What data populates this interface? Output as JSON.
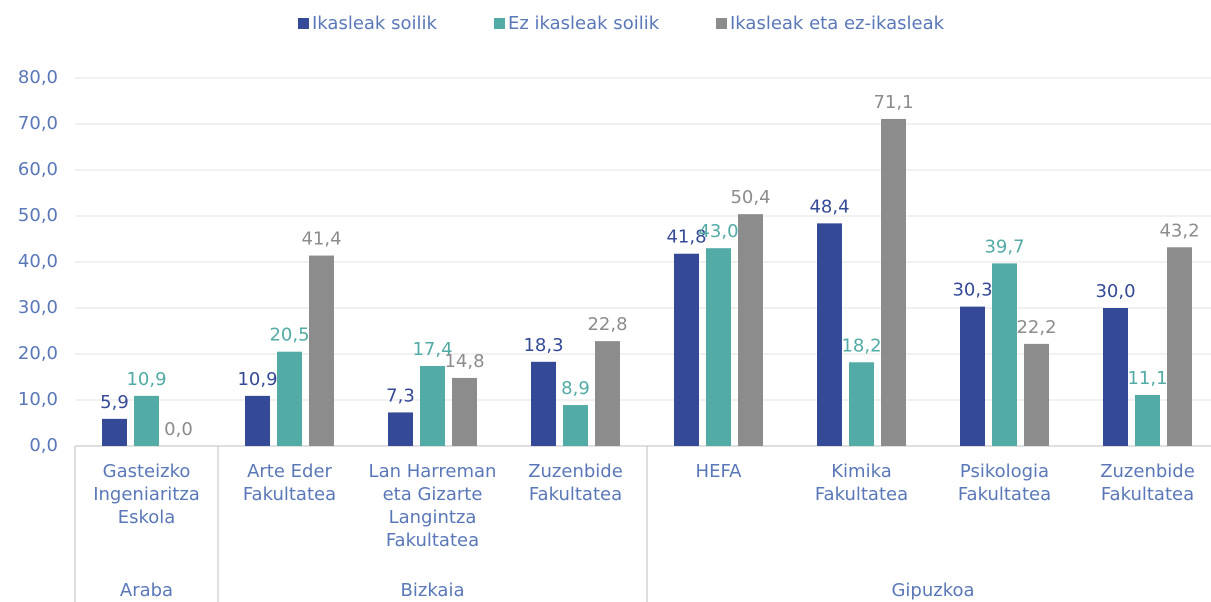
{
  "chart_data": {
    "type": "bar",
    "groups": [
      {
        "name": "Araba",
        "categories": [
          "Gasteizko Ingeniaritza Eskola"
        ]
      },
      {
        "name": "Bizkaia",
        "categories": [
          "Arte Eder Fakultatea",
          "Lan Harreman eta Gizarte Langintza Fakultatea",
          "Zuzenbide Fakultatea"
        ]
      },
      {
        "name": "Gipuzkoa",
        "categories": [
          "HEFA",
          "Kimika Fakultatea",
          "Psikologia Fakultatea",
          "Zuzenbide Fakultatea"
        ]
      }
    ],
    "series": [
      {
        "name": "Ikasleak soilik",
        "color": "#354a96",
        "values": [
          5.9,
          10.9,
          7.3,
          18.3,
          41.8,
          48.4,
          30.3,
          30.0
        ],
        "value_labels": [
          "5,9",
          "10,9",
          "7,3",
          "18,3",
          "41,8",
          "48,4",
          "30,3",
          "30,0"
        ]
      },
      {
        "name": "Ez ikasleak soilik",
        "color": "#52aba5",
        "values": [
          10.9,
          20.5,
          17.4,
          8.9,
          43.0,
          18.2,
          39.7,
          11.1
        ],
        "value_labels": [
          "10,9",
          "20,5",
          "17,4",
          "8,9",
          "43,0",
          "18,2",
          "39,7",
          "11,1"
        ]
      },
      {
        "name": "Ikasleak eta ez-ikasleak",
        "color": "#8c8c8c",
        "values": [
          0.0,
          41.4,
          14.8,
          22.8,
          50.4,
          71.1,
          22.2,
          43.2
        ],
        "value_labels": [
          "0,0",
          "41,4",
          "14,8",
          "22,8",
          "50,4",
          "71,1",
          "22,2",
          "43,2"
        ]
      }
    ],
    "ylim": [
      0,
      80
    ],
    "yticks": [
      {
        "value": 0,
        "label": "0,0"
      },
      {
        "value": 10,
        "label": "10,0"
      },
      {
        "value": 20,
        "label": "20,0"
      },
      {
        "value": 30,
        "label": "30,0"
      },
      {
        "value": 40,
        "label": "40,0"
      },
      {
        "value": 50,
        "label": "50,0"
      },
      {
        "value": 60,
        "label": "60,0"
      },
      {
        "value": 70,
        "label": "70,0"
      },
      {
        "value": 80,
        "label": "80,0"
      }
    ],
    "grid": true,
    "legend": "top"
  }
}
